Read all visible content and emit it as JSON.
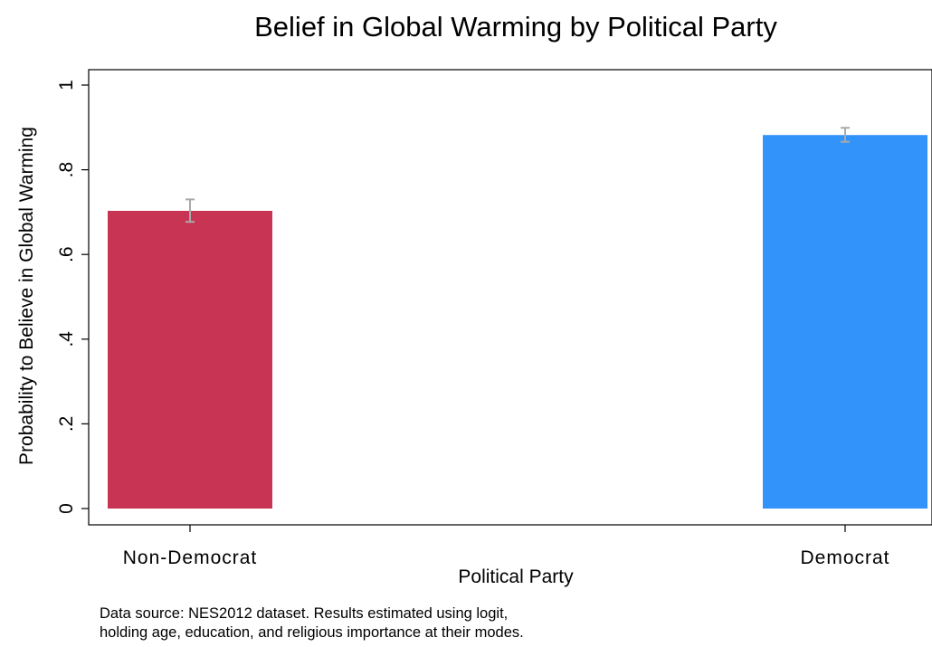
{
  "chart_data": {
    "type": "bar",
    "title": "Belief in Global Warming by Political Party",
    "xlabel": "Political Party",
    "ylabel": "Probability to Believe in Global Warming",
    "categories": [
      "Non-Democrat",
      "Democrat"
    ],
    "values": [
      0.703,
      0.882
    ],
    "ci_low": [
      0.677,
      0.866
    ],
    "ci_high": [
      0.73,
      0.899
    ],
    "bar_colors": [
      "#c83454",
      "#3294fa"
    ],
    "errorbar_color": "#a9a9a9",
    "ylim": [
      0,
      1
    ],
    "yticks": [
      {
        "value": 0,
        "label": "0"
      },
      {
        "value": 0.2,
        "label": ".2"
      },
      {
        "value": 0.4,
        "label": ".4"
      },
      {
        "value": 0.6,
        "label": ".6"
      },
      {
        "value": 0.8,
        "label": ".8"
      },
      {
        "value": 1,
        "label": "1"
      }
    ],
    "grid": false,
    "note_lines": [
      "Data source: NES2012 dataset. Results estimated using logit,",
      "holding age, education, and religious importance at their modes."
    ]
  }
}
